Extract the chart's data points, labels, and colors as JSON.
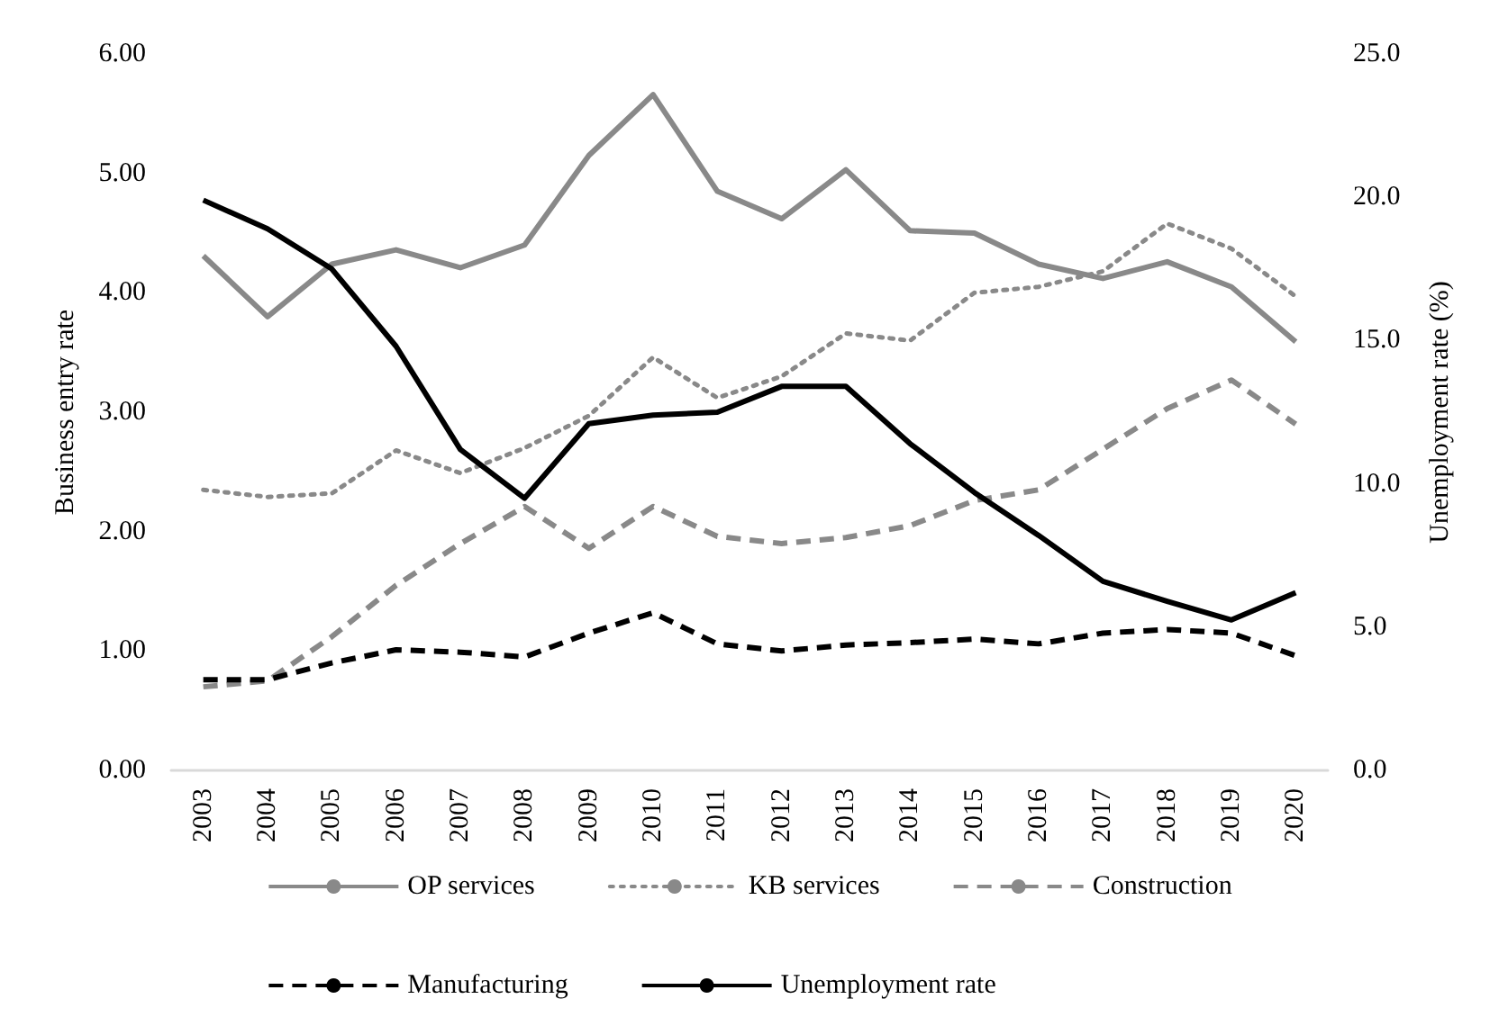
{
  "chart_data": {
    "type": "line",
    "categories": [
      "2003",
      "2004",
      "2005",
      "2006",
      "2007",
      "2008",
      "2009",
      "2010",
      "2011",
      "2012",
      "2013",
      "2014",
      "2015",
      "2016",
      "2017",
      "2018",
      "2019",
      "2020"
    ],
    "ylabel": "Business entry rate",
    "y2label": "Unemployment rate (%)",
    "ylim": [
      0,
      6
    ],
    "yticks": [
      {
        "value": 0,
        "label": "0.00"
      },
      {
        "value": 1,
        "label": "1.00"
      },
      {
        "value": 2,
        "label": "2.00"
      },
      {
        "value": 3,
        "label": "3.00"
      },
      {
        "value": 4,
        "label": "4.00"
      },
      {
        "value": 5,
        "label": "5.00"
      },
      {
        "value": 6,
        "label": "6.00"
      }
    ],
    "y2lim": [
      0,
      25
    ],
    "y2ticks": [
      {
        "value": 0,
        "label": "0.0"
      },
      {
        "value": 5,
        "label": "5.0"
      },
      {
        "value": 10,
        "label": "10.0"
      },
      {
        "value": 15,
        "label": "15.0"
      },
      {
        "value": 20,
        "label": "20.0"
      },
      {
        "value": 25,
        "label": "25.0"
      }
    ],
    "grid": false,
    "legend": "bottom",
    "marker": "none",
    "series": [
      {
        "name": "OP services",
        "color": "#898989",
        "line_style": "solid",
        "values": [
          4.31,
          3.8,
          4.24,
          4.36,
          4.21,
          4.4,
          5.15,
          5.66,
          4.85,
          4.62,
          5.03,
          4.52,
          4.5,
          4.24,
          4.12,
          4.26,
          4.05,
          3.59
        ]
      },
      {
        "name": "KB services",
        "color": "#898989",
        "line_style": "dotted",
        "values": [
          2.35,
          2.29,
          2.32,
          2.68,
          2.49,
          2.7,
          2.97,
          3.46,
          3.12,
          3.3,
          3.66,
          3.6,
          4.0,
          4.05,
          4.18,
          4.58,
          4.37,
          3.97
        ]
      },
      {
        "name": "Construction",
        "color": "#898989",
        "line_style": "dashed",
        "values": [
          0.7,
          0.75,
          1.12,
          1.55,
          1.9,
          2.21,
          1.86,
          2.21,
          1.96,
          1.9,
          1.95,
          2.05,
          2.26,
          2.35,
          2.69,
          3.03,
          3.27,
          2.9
        ]
      },
      {
        "name": "Manufacturing",
        "color": "#000000",
        "line_style": "dashed",
        "values": [
          0.76,
          0.76,
          0.9,
          1.01,
          0.99,
          0.95,
          1.15,
          1.32,
          1.06,
          1.0,
          1.05,
          1.07,
          1.1,
          1.06,
          1.15,
          1.18,
          1.15,
          0.96
        ]
      },
      {
        "name": "Unemployment rate",
        "color": "#000000",
        "line_style": "solid",
        "axis": "y2",
        "values": [
          19.9,
          18.9,
          17.5,
          14.8,
          11.2,
          9.5,
          12.1,
          12.4,
          12.5,
          13.4,
          13.4,
          11.4,
          9.7,
          8.2,
          6.6,
          5.9,
          5.25,
          6.2
        ]
      }
    ]
  }
}
